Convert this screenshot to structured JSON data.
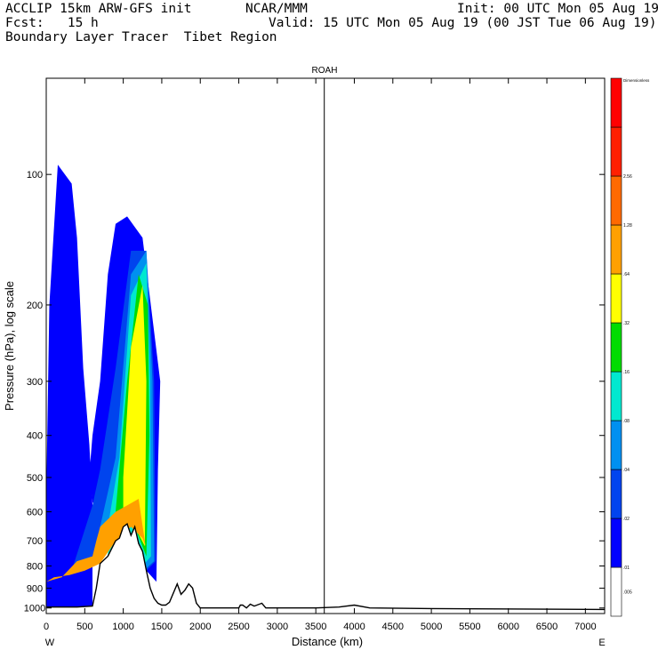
{
  "header": {
    "model": "ACCLIP 15km ARW-GFS init",
    "org": "NCAR/MMM",
    "init": "Init: 00 UTC Mon 05 Aug 19",
    "fcst": "Fcst:   15 h",
    "valid": "Valid: 15 UTC Mon 05 Aug 19 (00 JST Tue 06 Aug 19)",
    "field": "Boundary Layer Tracer  Tibet Region"
  },
  "chart_data": {
    "type": "heatmap",
    "title": "ROAH",
    "xlabel": "Distance (km)",
    "ylabel": "Pressure (hPa), log scale",
    "x_start_label": "W",
    "x_end_label": "E",
    "xlim": [
      0,
      7250
    ],
    "ylim": [
      1030,
      60
    ],
    "x_ticks": [
      0,
      500,
      1000,
      1500,
      2000,
      2500,
      3000,
      3500,
      4000,
      4500,
      5000,
      5500,
      6000,
      6500,
      7000
    ],
    "y_ticks": [
      100,
      200,
      300,
      400,
      500,
      600,
      700,
      800,
      900,
      1000
    ],
    "marker_line_km": 3610,
    "colorbar": {
      "title": "Dimensionless",
      "levels": [
        ".005",
        ".01",
        ".02",
        ".04",
        ".08",
        ".16",
        ".32",
        ".64",
        "1.28",
        "2.56"
      ],
      "colors": [
        "#ffffff",
        "#0000ff",
        "#0044ee",
        "#0090f0",
        "#00e8d0",
        "#00dc00",
        "#ffff00",
        "#ffa000",
        "#ff6a00",
        "#ff2000"
      ]
    },
    "terrain": {
      "x_km": [
        0,
        200,
        400,
        600,
        650,
        700,
        800,
        900,
        950,
        1000,
        1050,
        1100,
        1150,
        1200,
        1250,
        1300,
        1350,
        1400,
        1450,
        1500,
        1550,
        1600,
        1700,
        1750,
        1800,
        1850,
        1900,
        1950,
        2000,
        2500,
        2520,
        2550,
        2600,
        2650,
        2700,
        2800,
        2850,
        2900,
        3000,
        3500,
        3800,
        4000,
        4200,
        5000,
        7250
      ],
      "p_hpa": [
        995,
        995,
        995,
        990,
        900,
        790,
        760,
        700,
        690,
        650,
        640,
        680,
        650,
        710,
        740,
        820,
        900,
        950,
        975,
        985,
        985,
        970,
        880,
        930,
        910,
        880,
        900,
        975,
        1000,
        1000,
        985,
        985,
        1000,
        980,
        990,
        975,
        1000,
        1000,
        1000,
        1000,
        995,
        985,
        1000,
        1003,
        1008
      ]
    },
    "tracer_regions": [
      {
        "level": ".01",
        "x_km": [
          150,
          330,
          400,
          480,
          560,
          600,
          600,
          350,
          100,
          0,
          0,
          40,
          150
        ],
        "p_hpa": [
          95,
          105,
          140,
          280,
          420,
          580,
          1000,
          1000,
          1000,
          1000,
          560,
          200,
          95
        ]
      },
      {
        "level": ".01",
        "x_km": [
          800,
          900,
          1050,
          1250,
          1480,
          1450,
          1430,
          1300,
          1100,
          950,
          780,
          600,
          560,
          600,
          700,
          800
        ],
        "p_hpa": [
          170,
          130,
          125,
          140,
          300,
          480,
          870,
          820,
          650,
          760,
          640,
          570,
          490,
          400,
          300,
          170
        ]
      },
      {
        "level": ".02",
        "x_km": [
          600,
          700,
          900,
          1100,
          1300,
          1400,
          1420,
          1300,
          1000,
          600,
          350
        ],
        "p_hpa": [
          580,
          480,
          280,
          150,
          150,
          300,
          780,
          820,
          680,
          760,
          800
        ]
      },
      {
        "level": ".04",
        "x_km": [
          700,
          900,
          1100,
          1300,
          1380,
          1400,
          1300,
          1100,
          900,
          700
        ],
        "p_hpa": [
          650,
          450,
          170,
          150,
          300,
          780,
          810,
          660,
          700,
          780
        ]
      },
      {
        "level": ".08",
        "x_km": [
          800,
          950,
          1100,
          1300,
          1350,
          1360,
          1250,
          1050,
          900,
          800
        ],
        "p_hpa": [
          650,
          450,
          190,
          160,
          300,
          760,
          800,
          670,
          700,
          760
        ]
      },
      {
        "level": ".16",
        "x_km": [
          900,
          1050,
          1200,
          1320,
          1340,
          1300,
          1150,
          1000,
          900
        ],
        "p_hpa": [
          600,
          300,
          170,
          200,
          400,
          760,
          650,
          650,
          700
        ]
      },
      {
        "level": ".32",
        "x_km": [
          1000,
          1100,
          1250,
          1300,
          1280,
          1150,
          1000
        ],
        "p_hpa": [
          500,
          250,
          180,
          300,
          720,
          650,
          640
        ]
      },
      {
        "level": ".64",
        "x_km": [
          0,
          200,
          400,
          600,
          650,
          700,
          900,
          1050,
          1200,
          1290,
          1250,
          1100,
          900,
          700,
          500,
          300,
          100,
          0
        ],
        "p_hpa": [
          870,
          850,
          780,
          760,
          700,
          650,
          600,
          580,
          560,
          720,
          690,
          650,
          700,
          790,
          820,
          840,
          850,
          870
        ]
      }
    ]
  }
}
